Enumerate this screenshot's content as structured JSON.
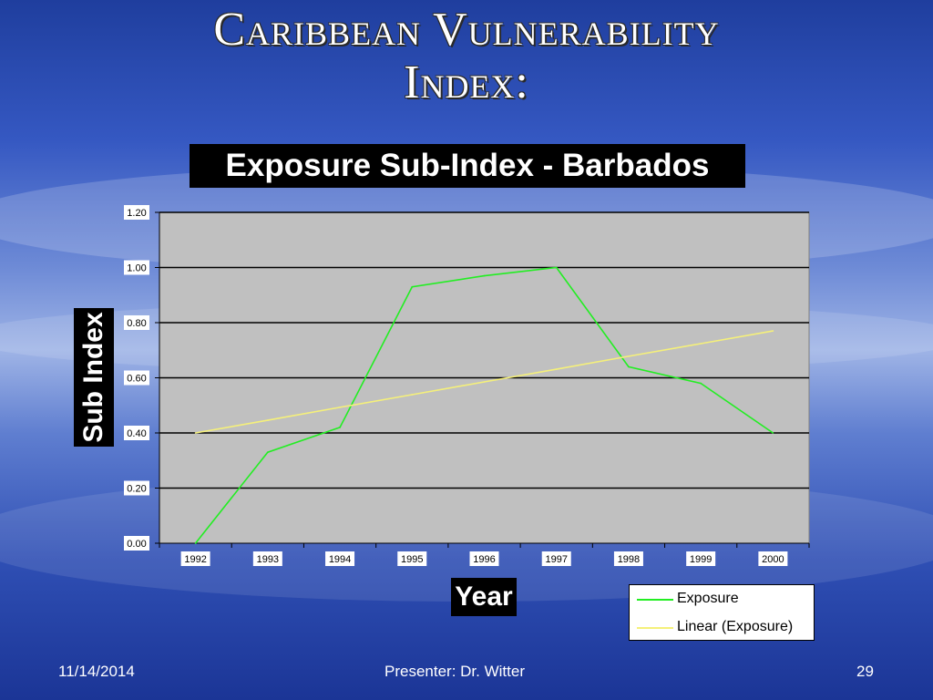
{
  "slide": {
    "title_line1": "Caribbean Vulnerability",
    "title_line2": "Index:"
  },
  "footer": {
    "date": "11/14/2014",
    "presenter": "Presenter: Dr. Witter",
    "page": "29"
  },
  "colors": {
    "exposure": "#22ee22",
    "linear": "#f5f07a",
    "plot_bg": "#c0c0c0"
  },
  "chart_data": {
    "type": "line",
    "title": "Exposure Sub-Index - Barbados",
    "xlabel": "Year",
    "ylabel": "Sub Index",
    "categories": [
      "1992",
      "1993",
      "1994",
      "1995",
      "1996",
      "1997",
      "1998",
      "1999",
      "2000"
    ],
    "ylim": [
      0,
      1.2
    ],
    "yticks": [
      "0.00",
      "0.20",
      "0.40",
      "0.60",
      "0.80",
      "1.00",
      "1.20"
    ],
    "grid": true,
    "legend_position": "bottom-right",
    "series": [
      {
        "name": "Exposure",
        "values": [
          0.0,
          0.33,
          0.42,
          0.93,
          0.97,
          1.0,
          0.64,
          0.58,
          0.4
        ]
      },
      {
        "name": "Linear (Exposure)",
        "trendline": true,
        "values": [
          0.4,
          0.446,
          0.493,
          0.539,
          0.585,
          0.631,
          0.678,
          0.724,
          0.77
        ]
      }
    ]
  }
}
